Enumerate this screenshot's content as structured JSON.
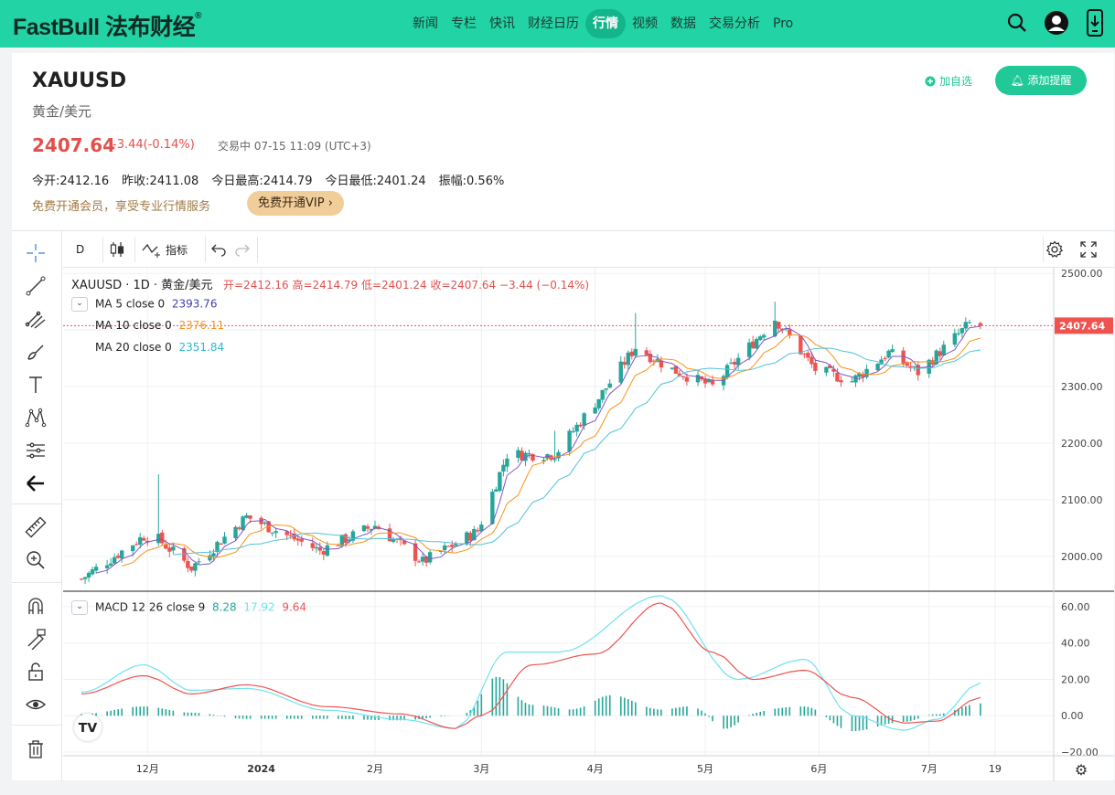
{
  "brand": {
    "name": "FastBull 法布财经",
    "mark": "®"
  },
  "nav": [
    "新闻",
    "专栏",
    "快讯",
    "财经日历",
    "行情",
    "视频",
    "数据",
    "交易分析",
    "Pro"
  ],
  "nav_active": 4,
  "quote": {
    "symbol": "XAUUSD",
    "name_cn": "黄金/美元",
    "price": "2407.64",
    "change": "-3.44(-0.14%)",
    "status": "交易中 07-15 11:09 (UTC+3)",
    "stats": [
      {
        "label": "今开:",
        "value": "2412.16"
      },
      {
        "label": "昨收:",
        "value": "2411.08"
      },
      {
        "label": "今日最高:",
        "value": "2414.79"
      },
      {
        "label": "今日最低:",
        "value": "2401.24"
      },
      {
        "label": "振幅:",
        "value": "0.56%"
      }
    ],
    "promo": "免费开通会员，享受专业行情服务",
    "vip_button": "免费开通VIP",
    "watch_label": "加自选",
    "alert_button": "添加提醒"
  },
  "toolbar": {
    "interval": "D",
    "indicators": "指标"
  },
  "legend": {
    "title": "XAUUSD · 1D · 黄金/美元",
    "ohlc": "开=2412.16 高=2414.79 低=2401.24 收=2407.64 −3.44 (−0.14%)",
    "ma5_label": "MA 5 close 0",
    "ma5_value": "2393.76",
    "ma10_label": "MA 10 close 0",
    "ma10_value": "2376.11",
    "ma20_label": "MA 20 close 0",
    "ma20_value": "2351.84",
    "macd_label": "MACD 12 26 close 9",
    "macd_hist": "8.28",
    "macd_signal": "17.92",
    "macd_value": "9.64"
  },
  "colors": {
    "up": "#26a69a",
    "down": "#ef5350",
    "ma5": "#7e57c2",
    "ma10": "#f7931a",
    "ma20": "#4fc3d9",
    "macd": "#ef5350",
    "signal": "#6de3f0",
    "accent": "#22d3a6"
  },
  "chart_data": [
    {
      "type": "candlestick",
      "title": "",
      "ylim": [
        1940,
        2510
      ],
      "yticks": [
        2000,
        2100,
        2200,
        2300,
        2400,
        2500
      ],
      "ytick_labels": [
        "2000.00",
        "2100.00",
        "2200.00",
        "2300.00",
        "2400.00",
        "2500.00"
      ],
      "last_price_label": "2407.64",
      "xticks": [
        "12月",
        "2024",
        "2月",
        "3月",
        "4月",
        "5月",
        "6月",
        "7月",
        "19"
      ],
      "keypoints": [
        {
          "date": "2023-11-13",
          "close": 1960
        },
        {
          "date": "2023-11-30",
          "close": 2036
        },
        {
          "date": "2023-12-04",
          "close": 2030
        },
        {
          "date": "2023-12-13",
          "close": 1980
        },
        {
          "date": "2023-12-28",
          "close": 2070
        },
        {
          "date": "2024-01-17",
          "close": 2010
        },
        {
          "date": "2024-02-01",
          "close": 2055
        },
        {
          "date": "2024-02-14",
          "close": 1990
        },
        {
          "date": "2024-02-29",
          "close": 2045
        },
        {
          "date": "2024-03-08",
          "close": 2180
        },
        {
          "date": "2024-03-21",
          "close": 2180
        },
        {
          "date": "2024-04-02",
          "close": 2280
        },
        {
          "date": "2024-04-12",
          "close": 2370
        },
        {
          "date": "2024-04-22",
          "close": 2330
        },
        {
          "date": "2024-05-03",
          "close": 2300
        },
        {
          "date": "2024-05-20",
          "close": 2420
        },
        {
          "date": "2024-05-31",
          "close": 2330
        },
        {
          "date": "2024-06-10",
          "close": 2310
        },
        {
          "date": "2024-06-20",
          "close": 2360
        },
        {
          "date": "2024-06-28",
          "close": 2325
        },
        {
          "date": "2024-07-12",
          "close": 2411
        }
      ]
    },
    {
      "type": "line",
      "title": "",
      "ylim": [
        -22,
        68
      ],
      "yticks": [
        -20,
        0,
        20,
        40,
        60
      ],
      "ytick_labels": [
        "−20.00",
        "0.00",
        "20.00",
        "40.00",
        "60.00"
      ],
      "series": [
        {
          "name": "MACD",
          "points": [
            [
              "2023-11-13",
              12
            ],
            [
              "2023-11-30",
              22
            ],
            [
              "2023-12-13",
              12
            ],
            [
              "2023-12-28",
              17
            ],
            [
              "2024-01-19",
              5
            ],
            [
              "2024-02-08",
              1
            ],
            [
              "2024-02-23",
              -7
            ],
            [
              "2024-03-01",
              0
            ],
            [
              "2024-03-15",
              28
            ],
            [
              "2024-04-01",
              34
            ],
            [
              "2024-04-19",
              62
            ],
            [
              "2024-05-03",
              35
            ],
            [
              "2024-05-14",
              20
            ],
            [
              "2024-05-28",
              25
            ],
            [
              "2024-06-10",
              10
            ],
            [
              "2024-06-24",
              -4
            ],
            [
              "2024-07-03",
              -3
            ],
            [
              "2024-07-15",
              10
            ]
          ]
        },
        {
          "name": "signal",
          "points": [
            [
              "2023-11-13",
              13
            ],
            [
              "2023-11-30",
              28
            ],
            [
              "2023-12-13",
              14
            ],
            [
              "2023-12-28",
              15
            ],
            [
              "2024-01-19",
              3
            ],
            [
              "2024-02-08",
              -2
            ],
            [
              "2024-02-23",
              -7
            ],
            [
              "2024-03-08",
              35
            ],
            [
              "2024-03-22",
              35
            ],
            [
              "2024-04-19",
              66
            ],
            [
              "2024-05-10",
              20
            ],
            [
              "2024-05-28",
              31
            ],
            [
              "2024-06-10",
              0
            ],
            [
              "2024-06-24",
              -8
            ],
            [
              "2024-07-03",
              -2
            ],
            [
              "2024-07-15",
              18
            ]
          ]
        }
      ]
    }
  ]
}
